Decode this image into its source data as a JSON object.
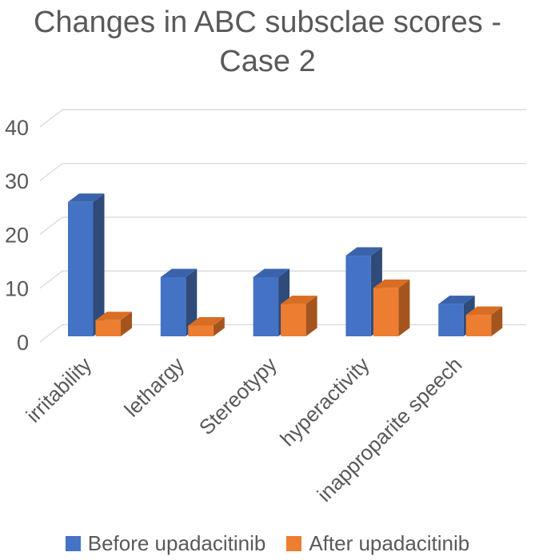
{
  "title": "Changes in ABC subsclae scores - Case 2",
  "chart_data": {
    "type": "bar",
    "style": "3d-clustered-column",
    "title": "Changes in ABC subsclae scores - Case 2",
    "categories": [
      "irritability",
      "lethargy",
      "Stereotypy",
      "hyperactivity",
      "inapproparite speech"
    ],
    "series": [
      {
        "name": "Before upadacitinib",
        "values": [
          25,
          11,
          11,
          15,
          6
        ],
        "color": "#4472C4",
        "color_top": "#3A63AC",
        "color_side": "#2E4B79"
      },
      {
        "name": "After upadacitinib",
        "values": [
          3,
          2,
          6,
          9,
          4
        ],
        "color": "#ED7D31",
        "color_top": "#D96D24",
        "color_side": "#A4551E"
      }
    ],
    "ylim": [
      0,
      40
    ],
    "yticks": [
      0,
      10,
      20,
      30,
      40
    ],
    "grid": true,
    "legend_position": "bottom",
    "title_color": "#595959",
    "axis_text_color": "#595959",
    "gridline_color": "#D9D9D9"
  }
}
